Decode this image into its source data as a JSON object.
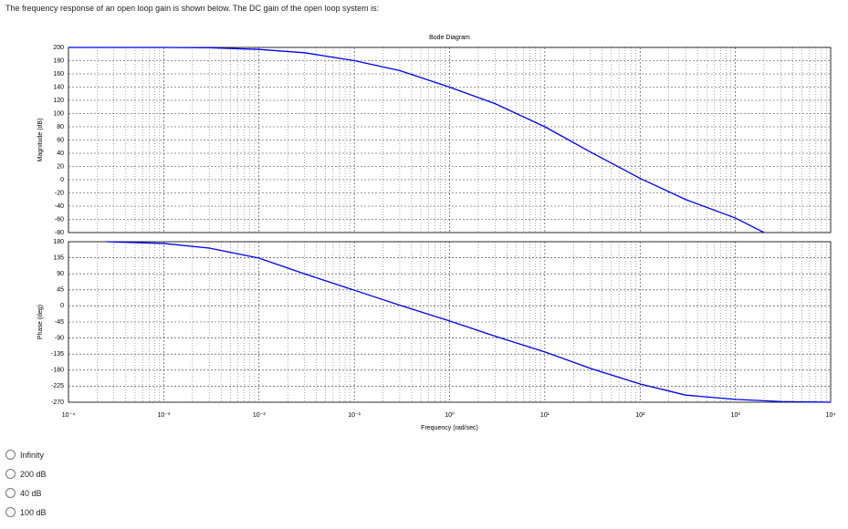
{
  "question": "The frequency response of an open loop gain is shown below. The DC gain of the open loop system is:",
  "chart_data": [
    {
      "type": "line",
      "title": "Bode Diagram",
      "ylabel": "Magnitude (dB)",
      "xscale": "log",
      "grid": true,
      "color": "#0000ee",
      "x": [
        0.0001,
        0.001,
        0.003,
        0.01,
        0.03,
        0.1,
        0.3,
        1,
        3,
        10,
        30,
        100,
        300,
        1000,
        2000
      ],
      "values": [
        200,
        200,
        199.5,
        197,
        192,
        180,
        165,
        140,
        115,
        80,
        42,
        2,
        -30,
        -58,
        -80
      ],
      "xlim": [
        0.0001,
        10000
      ],
      "xticks": [
        0.0001,
        0.001,
        0.01,
        0.1,
        1,
        10,
        100,
        1000,
        10000
      ],
      "ylim": [
        -80,
        200
      ],
      "yticks": [
        200,
        180,
        160,
        140,
        120,
        100,
        80,
        60,
        40,
        20,
        0,
        -20,
        -40,
        -60,
        -80
      ]
    },
    {
      "type": "line",
      "ylabel": "Phase (deg)",
      "xlabel": "Frequency (rad/sec)",
      "xscale": "log",
      "grid": true,
      "color": "#0000ee",
      "x": [
        0.00025,
        0.001,
        0.003,
        0.01,
        0.03,
        0.1,
        0.3,
        1,
        3,
        10,
        30,
        100,
        300,
        1000,
        3000,
        10000
      ],
      "values": [
        180,
        175,
        162,
        134,
        90,
        44,
        2,
        -42,
        -85,
        -129,
        -175,
        -219,
        -250,
        -262,
        -268,
        -270
      ],
      "xlim": [
        0.0001,
        10000
      ],
      "xticks": [
        {
          "value": 0.0001,
          "label": "10⁻⁴"
        },
        {
          "value": 0.001,
          "label": "10⁻³"
        },
        {
          "value": 0.01,
          "label": "10⁻²"
        },
        {
          "value": 0.1,
          "label": "10⁻¹"
        },
        {
          "value": 1,
          "label": "10⁰"
        },
        {
          "value": 10,
          "label": "10¹"
        },
        {
          "value": 100,
          "label": "10²"
        },
        {
          "value": 1000,
          "label": "10³"
        },
        {
          "value": 10000,
          "label": "10⁴"
        }
      ],
      "ylim": [
        -270,
        180
      ],
      "yticks": [
        180,
        135,
        90,
        45,
        0,
        -45,
        -90,
        -135,
        -180,
        -225,
        -270
      ]
    }
  ],
  "options": [
    "Infinity",
    "200 dB",
    "40 dB",
    "100 dB"
  ]
}
